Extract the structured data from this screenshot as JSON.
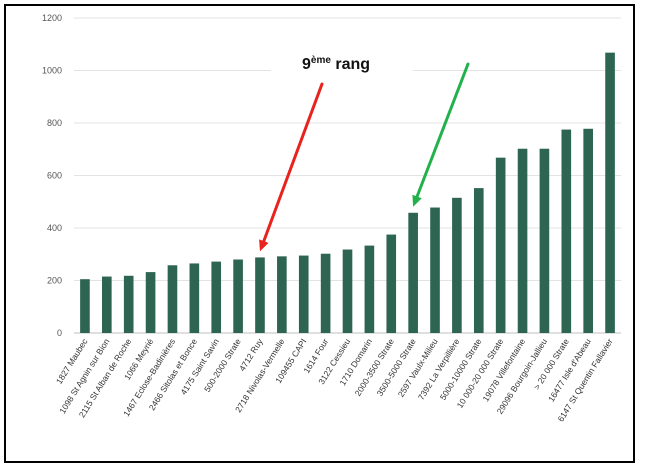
{
  "chart_data": {
    "type": "bar",
    "color": "#2e6552",
    "ylim": [
      0,
      1200
    ],
    "yticks": [
      "0",
      "200",
      "400",
      "600",
      "800",
      "1000",
      "1200"
    ],
    "grid": true,
    "categories": [
      "1827 Maubec",
      "1098 St Agnin sur Bion",
      "2115 St Alban de Roche",
      "1066 Meyrié",
      "1467 Eclose-Badinières",
      "2466 Sitolas et Bonce",
      "4175 Saint Savin",
      "500-2000 Strate",
      "4712 Ruy",
      "2718 Nivolas-Vermelle",
      "109455 CAPI",
      "1614 Four",
      "3122 Cessieu",
      "1710 Domarin",
      "2000-3500 Strate",
      "3500-5000 Strate",
      "2597 Vaulx-Milieu",
      "7392 La Verpillière",
      "5000-10000 Strate",
      "10 000-20 000 Strate",
      "19078 Villefontaine",
      "29096 Bourgoin-Jallieu",
      "> 20 000 Strate",
      "16477 Isle d'Abeau",
      "6147 St Quentin Fallavier"
    ],
    "values": [
      205,
      215,
      218,
      232,
      258,
      265,
      272,
      280,
      288,
      292,
      295,
      302,
      318,
      333,
      375,
      458,
      478,
      515,
      552,
      668,
      702,
      702,
      775,
      778,
      1068
    ],
    "annotations": [
      {
        "text_main": "9",
        "text_sup": "ème",
        "text_tail": " rang",
        "arrow_color": "#e8231e",
        "points_to": "4712 Ruy"
      },
      {
        "arrow_color": "#22b14c",
        "points_to": "3500-5000 Strate"
      }
    ]
  }
}
